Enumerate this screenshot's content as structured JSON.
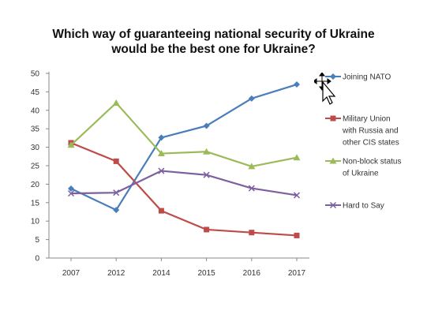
{
  "title_lines": [
    "Which  way of guaranteeing national security of Ukraine",
    "would be the best one for Ukraine?"
  ],
  "chart_data": {
    "type": "line",
    "title": "Which  way of guaranteeing national security of Ukraine would be the best one for Ukraine?",
    "categories": [
      "2007",
      "2012",
      "2014",
      "2015",
      "2016",
      "2017"
    ],
    "ylim": [
      0,
      50
    ],
    "yticks": [
      "0",
      "5",
      "10",
      "15",
      "20",
      "25",
      "30",
      "35",
      "40",
      "45",
      "50"
    ],
    "grid": false,
    "legend_position": "right",
    "series": [
      {
        "name": "Joining NATO",
        "legend_lines": [
          "Joining NATO"
        ],
        "color": "#4a7ebb",
        "marker": "diamond",
        "values": [
          18.8,
          13.0,
          32.6,
          35.8,
          43.2,
          47.0
        ]
      },
      {
        "name": "Military Union with Russia and other CIS states",
        "legend_lines": [
          "Military Union",
          "with Russia and",
          "other CIS states"
        ],
        "color": "#be4b48",
        "marker": "square",
        "values": [
          31.2,
          26.2,
          12.8,
          7.7,
          6.9,
          6.1
        ]
      },
      {
        "name": "Non-block status of Ukraine",
        "legend_lines": [
          "Non-block status",
          "of Ukraine"
        ],
        "color": "#9bbb59",
        "marker": "triangle",
        "values": [
          30.6,
          42.0,
          28.3,
          28.8,
          24.8,
          27.2
        ]
      },
      {
        "name": "Hard to Say",
        "legend_lines": [
          "Hard to Say"
        ],
        "color": "#7d60a0",
        "marker": "x",
        "values": [
          17.5,
          17.7,
          23.6,
          22.5,
          18.9,
          17.0
        ]
      }
    ]
  }
}
